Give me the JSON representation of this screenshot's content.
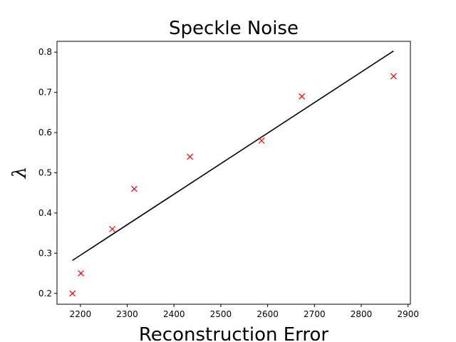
{
  "chart_data": {
    "type": "scatter",
    "title": "Speckle Noise",
    "xlabel": "Reconstruction Error",
    "ylabel": "λ",
    "xlim": [
      2150,
      2905
    ],
    "ylim": [
      0.173,
      0.827
    ],
    "xticks": [
      2200,
      2300,
      2400,
      2500,
      2600,
      2700,
      2800,
      2900
    ],
    "yticks": [
      0.2,
      0.3,
      0.4,
      0.5,
      0.6,
      0.7,
      0.8
    ],
    "grid": false,
    "series": [
      {
        "kind": "points",
        "marker": "x",
        "color": "#ff0000",
        "x": [
          2183,
          2201,
          2268,
          2315,
          2434,
          2587,
          2673,
          2869
        ],
        "y": [
          0.2,
          0.25,
          0.36,
          0.46,
          0.54,
          0.58,
          0.69,
          0.74
        ]
      },
      {
        "kind": "fit-line",
        "color": "#000000",
        "x": [
          2183,
          2869
        ],
        "y": [
          0.282,
          0.803
        ]
      }
    ]
  }
}
